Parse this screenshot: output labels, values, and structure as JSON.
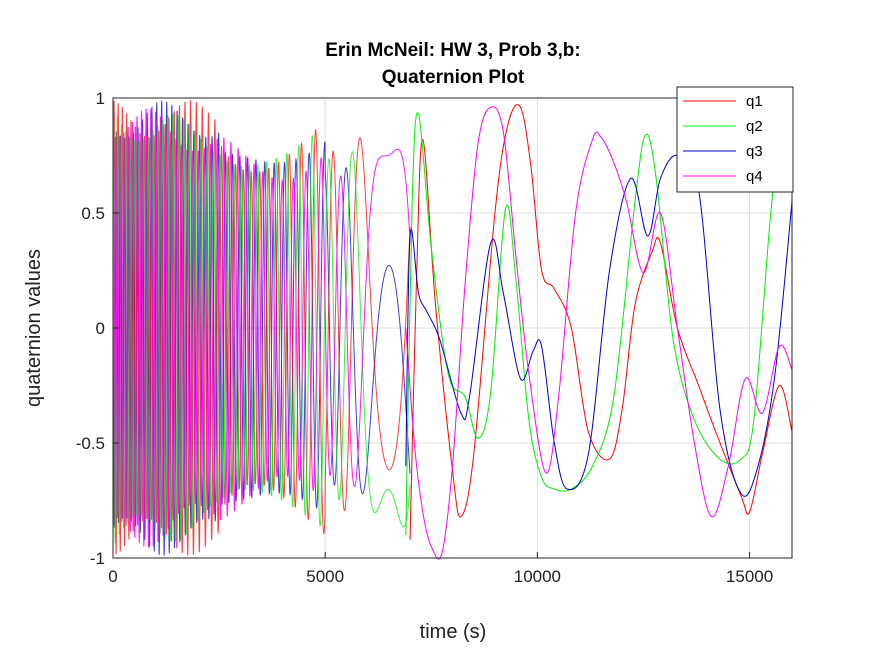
{
  "chart_data": {
    "type": "line",
    "title": [
      "Erin McNeil: HW 3, Prob 3,b:",
      "Quaternion Plot"
    ],
    "xlabel": "time (s)",
    "ylabel": "quaternion values",
    "xlim": [
      0,
      16000
    ],
    "ylim": [
      -1,
      1
    ],
    "xticks": [
      0,
      5000,
      10000,
      15000
    ],
    "xtick_labels": [
      "0",
      "5000",
      "10000",
      "15000"
    ],
    "yticks": [
      -1,
      -0.5,
      0,
      0.5,
      1
    ],
    "ytick_labels": [
      "-1",
      "-0.5",
      "0",
      "0.5",
      "1"
    ],
    "grid": true,
    "legend_position": "top-right",
    "dense_region": {
      "x_end": 7000,
      "note": "rapid oscillations between -1 and 1 for all series"
    },
    "series": [
      {
        "name": "q1",
        "color": "#ff0000",
        "x": [
          7000,
          7150,
          7300,
          7600,
          8000,
          8200,
          8500,
          9000,
          9300,
          9600,
          9850,
          10100,
          10400,
          10800,
          11200,
          11700,
          12000,
          12300,
          12700,
          12900,
          13300,
          13800,
          14200,
          14800,
          15000,
          15300,
          15700,
          16000
        ],
        "values": [
          -0.92,
          0.2,
          0.82,
          0.1,
          -0.62,
          -0.82,
          -0.55,
          0.5,
          0.88,
          0.96,
          0.7,
          0.25,
          0.17,
          0.0,
          -0.45,
          -0.57,
          -0.35,
          0.1,
          0.33,
          0.37,
          0.0,
          -0.25,
          -0.45,
          -0.73,
          -0.8,
          -0.55,
          -0.25,
          -0.45
        ]
      },
      {
        "name": "q2",
        "color": "#00ee00",
        "x": [
          6900,
          7050,
          7200,
          7500,
          7900,
          8300,
          8600,
          8900,
          9250,
          9500,
          9800,
          10100,
          10400,
          10800,
          11300,
          11800,
          12300,
          12550,
          12800,
          13200,
          13700,
          14300,
          14800,
          15100,
          15500,
          15800,
          16000
        ],
        "values": [
          -0.9,
          0.55,
          0.93,
          0.35,
          -0.2,
          -0.3,
          -0.48,
          -0.28,
          0.52,
          0.2,
          -0.4,
          -0.65,
          -0.7,
          -0.7,
          -0.6,
          -0.3,
          0.55,
          0.84,
          0.65,
          -0.05,
          -0.4,
          -0.57,
          -0.57,
          -0.4,
          0.5,
          0.95,
          0.7
        ]
      },
      {
        "name": "q3",
        "color": "#0000cc",
        "x": [
          6900,
          7000,
          7200,
          7400,
          7700,
          8200,
          8400,
          8900,
          9200,
          9600,
          9900,
          10100,
          10400,
          10700,
          11200,
          11700,
          12200,
          12600,
          12900,
          13300,
          13800,
          14300,
          14800,
          15200,
          15600,
          16000
        ],
        "values": [
          -0.6,
          0.4,
          0.15,
          0.07,
          -0.05,
          -0.37,
          -0.3,
          0.37,
          0.15,
          -0.22,
          -0.1,
          -0.08,
          -0.5,
          -0.7,
          -0.55,
          0.25,
          0.65,
          0.4,
          0.65,
          0.75,
          0.6,
          -0.35,
          -0.72,
          -0.6,
          -0.2,
          0.55
        ]
      },
      {
        "name": "q4",
        "color": "#ff00ff",
        "x": [
          6900,
          7100,
          7300,
          7500,
          7750,
          8000,
          8300,
          8600,
          8900,
          9200,
          9500,
          9800,
          10200,
          10500,
          10900,
          11300,
          11500,
          11800,
          12100,
          12500,
          12900,
          13300,
          13700,
          14100,
          14500,
          14900,
          15300,
          15700,
          16000
        ],
        "values": [
          0.0,
          -0.5,
          -0.8,
          -0.95,
          -0.98,
          -0.6,
          0.2,
          0.8,
          0.96,
          0.85,
          0.3,
          -0.2,
          -0.63,
          -0.3,
          0.5,
          0.82,
          0.83,
          0.72,
          0.55,
          0.24,
          0.5,
          0.0,
          -0.5,
          -0.82,
          -0.6,
          -0.22,
          -0.37,
          -0.08,
          -0.18
        ]
      }
    ]
  }
}
